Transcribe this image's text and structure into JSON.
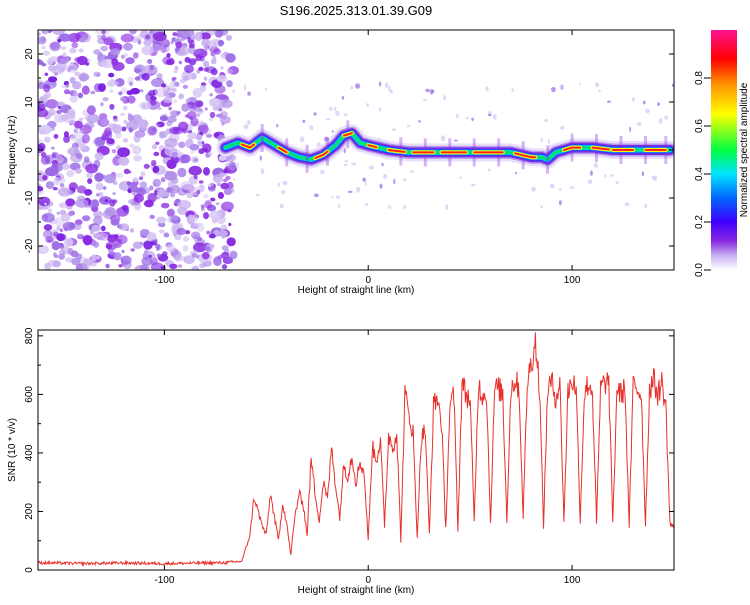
{
  "chart_data": [
    {
      "type": "heatmap",
      "title": "S196.2025.313.01.39.G09",
      "xlabel": "Height of straight line (km)",
      "ylabel": "Frequency (Hz)",
      "xlim": [
        -162,
        150
      ],
      "ylim": [
        -25,
        25
      ],
      "xticks": [
        -100,
        0,
        100
      ],
      "xtick_labels": [
        "-100",
        "0",
        "100"
      ],
      "yticks": [
        20,
        10,
        0,
        -10,
        -20
      ],
      "ytick_labels": [
        "20",
        "10",
        "0",
        "-10",
        "-20"
      ],
      "noise_region_x": [
        -162,
        -68
      ],
      "ridge": {
        "x": [
          -70,
          -64,
          -58,
          -52,
          -46,
          -40,
          -34,
          -28,
          -22,
          -16,
          -12,
          -8,
          -4,
          0,
          10,
          20,
          30,
          40,
          50,
          60,
          70,
          75,
          80,
          85,
          88,
          92,
          100,
          110,
          120,
          130,
          140,
          148
        ],
        "y": [
          0.5,
          1.5,
          0.5,
          2.5,
          1.0,
          -0.5,
          -1.5,
          -2.0,
          -1.0,
          1.0,
          3.0,
          3.5,
          1.5,
          1.0,
          0.0,
          -0.5,
          -0.5,
          -0.5,
          -0.5,
          -0.5,
          -0.5,
          -1.0,
          -1.5,
          -1.5,
          -2.0,
          -0.5,
          0.5,
          0.5,
          0.0,
          0.0,
          0.0,
          0.0
        ]
      },
      "colorbar": {
        "label": "Normalized spectral amplitude",
        "range": [
          0,
          1
        ],
        "ticks": [
          "0.0",
          "0.2",
          "0.4",
          "0.6",
          "0.8"
        ],
        "tick_values": [
          0.0,
          0.2,
          0.4,
          0.6,
          0.8
        ],
        "colors": [
          "#ffffff",
          "#c8b0f0",
          "#8a2be2",
          "#4000ff",
          "#0066ff",
          "#00e5ff",
          "#00ff40",
          "#ffff00",
          "#ff8c00",
          "#ff0000",
          "#ff1493"
        ]
      }
    },
    {
      "type": "line",
      "title": "",
      "xlabel": "Height of straight line (km)",
      "ylabel": "SNR (10 * v/v)",
      "xlim": [
        -162,
        150
      ],
      "ylim": [
        0,
        820
      ],
      "xticks": [
        -100,
        0,
        100
      ],
      "xtick_labels": [
        "-100",
        "0",
        "100"
      ],
      "yticks": [
        0,
        200,
        400,
        600,
        800
      ],
      "ytick_labels": [
        "0",
        "200",
        "400",
        "600",
        "800"
      ],
      "color": "#e8302a",
      "series": [
        {
          "name": "SNR",
          "x": [
            -162,
            -140,
            -120,
            -100,
            -80,
            -70,
            -62,
            -58,
            -56,
            -54,
            -52,
            -50,
            -48,
            -46,
            -44,
            -42,
            -40,
            -38,
            -36,
            -34,
            -32,
            -30,
            -28,
            -26,
            -24,
            -22,
            -20,
            -18,
            -16,
            -14,
            -12,
            -10,
            -8,
            -6,
            -4,
            -2,
            0,
            2,
            4,
            6,
            8,
            10,
            12,
            14,
            16,
            18,
            20,
            22,
            24,
            26,
            28,
            30,
            32,
            34,
            36,
            38,
            40,
            42,
            44,
            46,
            48,
            50,
            52,
            54,
            56,
            58,
            60,
            62,
            64,
            66,
            68,
            70,
            72,
            74,
            76,
            78,
            80,
            82,
            84,
            86,
            88,
            90,
            92,
            94,
            96,
            98,
            100,
            102,
            104,
            106,
            108,
            110,
            112,
            114,
            116,
            118,
            120,
            122,
            124,
            126,
            128,
            130,
            132,
            134,
            136,
            138,
            140,
            142,
            144,
            146,
            148,
            150
          ],
          "values": [
            25,
            22,
            24,
            22,
            24,
            25,
            30,
            120,
            250,
            200,
            150,
            120,
            260,
            180,
            100,
            230,
            160,
            50,
            180,
            260,
            230,
            120,
            380,
            260,
            170,
            300,
            240,
            420,
            290,
            180,
            360,
            320,
            390,
            300,
            370,
            330,
            100,
            420,
            380,
            440,
            150,
            460,
            420,
            470,
            100,
            600,
            530,
            470,
            110,
            450,
            480,
            120,
            560,
            590,
            500,
            140,
            550,
            600,
            140,
            640,
            600,
            580,
            160,
            630,
            600,
            610,
            160,
            620,
            620,
            600,
            170,
            620,
            650,
            620,
            180,
            640,
            710,
            780,
            630,
            150,
            620,
            640,
            590,
            640,
            170,
            610,
            650,
            620,
            170,
            600,
            640,
            610,
            160,
            620,
            640,
            640,
            160,
            620,
            600,
            620,
            150,
            640,
            620,
            600,
            150,
            620,
            650,
            600,
            640,
            560,
            160,
            140
          ]
        }
      ]
    }
  ]
}
